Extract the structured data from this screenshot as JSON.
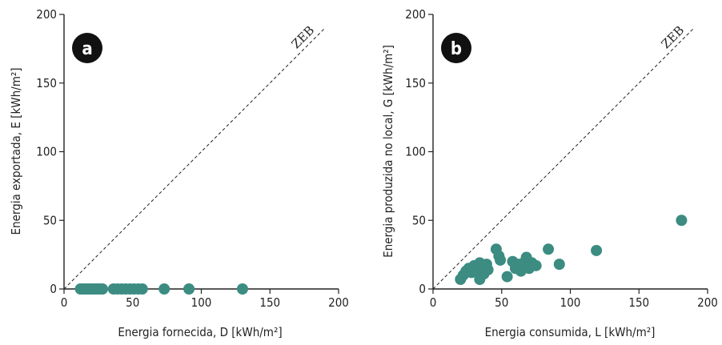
{
  "colors": {
    "point": "#3c8c82",
    "axis": "#222222",
    "badge": "#111111"
  },
  "chart_data": [
    {
      "type": "scatter",
      "panel_label": "a",
      "xlabel": "Energia fornecida, D [kWh/m²]",
      "ylabel": "Energia exportada, E [kWh/m²]",
      "xlim": [
        0,
        200
      ],
      "ylim": [
        0,
        200
      ],
      "xticks": [
        "0",
        "50",
        "100",
        "150",
        "200"
      ],
      "yticks": [
        "0",
        "50",
        "100",
        "150",
        "200"
      ],
      "reference_line": {
        "label": "ZEB",
        "from": [
          0,
          0
        ],
        "to": [
          200,
          200
        ],
        "style": "dashed"
      },
      "grid": false,
      "points": [
        {
          "x": 12,
          "y": 0
        },
        {
          "x": 14,
          "y": 0
        },
        {
          "x": 16,
          "y": 0
        },
        {
          "x": 18,
          "y": 0
        },
        {
          "x": 20,
          "y": 0
        },
        {
          "x": 22,
          "y": 0
        },
        {
          "x": 24,
          "y": 0
        },
        {
          "x": 26,
          "y": 0
        },
        {
          "x": 28,
          "y": 0
        },
        {
          "x": 36,
          "y": 0
        },
        {
          "x": 39,
          "y": 0
        },
        {
          "x": 42,
          "y": 0
        },
        {
          "x": 45,
          "y": 0
        },
        {
          "x": 48,
          "y": 0
        },
        {
          "x": 51,
          "y": 0
        },
        {
          "x": 54,
          "y": 0
        },
        {
          "x": 57,
          "y": 0
        },
        {
          "x": 73,
          "y": 0
        },
        {
          "x": 91,
          "y": 0
        },
        {
          "x": 130,
          "y": 0
        }
      ]
    },
    {
      "type": "scatter",
      "panel_label": "b",
      "xlabel": "Energia consumida, L [kWh/m²]",
      "ylabel": "Energia produzida no local, G [kWh/m²]",
      "xlim": [
        0,
        200
      ],
      "ylim": [
        0,
        200
      ],
      "xticks": [
        "0",
        "50",
        "100",
        "150",
        "200"
      ],
      "yticks": [
        "0",
        "50",
        "100",
        "150",
        "200"
      ],
      "reference_line": {
        "label": "ZEB",
        "from": [
          0,
          0
        ],
        "to": [
          200,
          200
        ],
        "style": "dashed"
      },
      "grid": false,
      "points": [
        {
          "x": 20,
          "y": 7
        },
        {
          "x": 22,
          "y": 10
        },
        {
          "x": 24,
          "y": 13
        },
        {
          "x": 26,
          "y": 15
        },
        {
          "x": 28,
          "y": 12
        },
        {
          "x": 30,
          "y": 17
        },
        {
          "x": 32,
          "y": 13
        },
        {
          "x": 34,
          "y": 19
        },
        {
          "x": 34,
          "y": 7
        },
        {
          "x": 36,
          "y": 16
        },
        {
          "x": 37,
          "y": 11
        },
        {
          "x": 39,
          "y": 18
        },
        {
          "x": 40,
          "y": 14
        },
        {
          "x": 46,
          "y": 29
        },
        {
          "x": 48,
          "y": 24
        },
        {
          "x": 49,
          "y": 21
        },
        {
          "x": 54,
          "y": 9
        },
        {
          "x": 58,
          "y": 20
        },
        {
          "x": 60,
          "y": 15
        },
        {
          "x": 62,
          "y": 18
        },
        {
          "x": 64,
          "y": 13
        },
        {
          "x": 66,
          "y": 19
        },
        {
          "x": 68,
          "y": 23
        },
        {
          "x": 70,
          "y": 15
        },
        {
          "x": 72,
          "y": 19
        },
        {
          "x": 75,
          "y": 17
        },
        {
          "x": 84,
          "y": 29
        },
        {
          "x": 92,
          "y": 18
        },
        {
          "x": 119,
          "y": 28
        },
        {
          "x": 181,
          "y": 50
        }
      ]
    }
  ]
}
